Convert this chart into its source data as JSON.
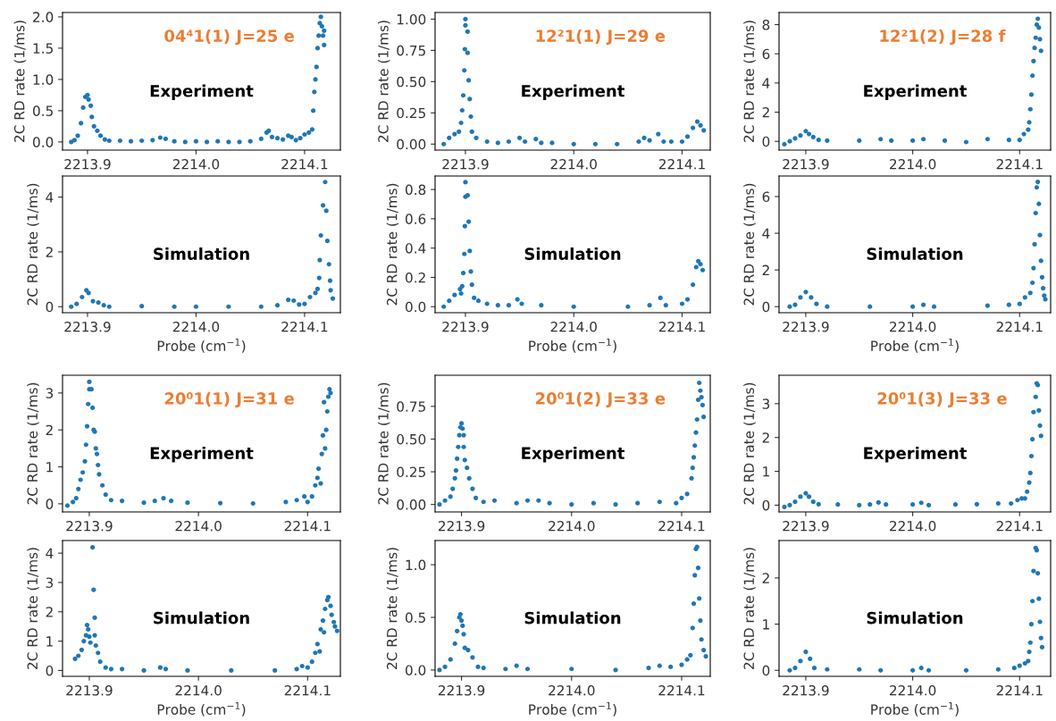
{
  "chart_data": [
    {
      "type": "scatter",
      "color": "#1f77b4",
      "marker": "circle",
      "ylabel": "2C RD rate (1/ms)",
      "annotations": [
        "04⁴1(1) J=25 e",
        "Experiment"
      ],
      "xlim": [
        2213.877,
        2214.133
      ],
      "ylim": [
        -0.13,
        2.07
      ],
      "xticks": [
        {
          "value": 2213.9,
          "label": "2213.9"
        },
        {
          "value": 2214,
          "label": "2214.0"
        },
        {
          "value": 2214.1,
          "label": "2214.1"
        }
      ],
      "yticks": [
        {
          "value": 0,
          "label": "0.0"
        },
        0.5,
        {
          "value": 1,
          "label": "1.0"
        },
        1.5,
        {
          "value": 2,
          "label": "2.0"
        }
      ],
      "x": [
        2213.885,
        2213.888,
        2213.891,
        2213.894,
        2213.896,
        2213.898,
        2213.9,
        2213.901,
        2213.903,
        2213.904,
        2213.906,
        2213.909,
        2213.912,
        2213.916,
        2213.92,
        2213.93,
        2213.94,
        2213.95,
        2213.96,
        2213.967,
        2213.972,
        2213.98,
        2213.99,
        2214.0,
        2214.01,
        2214.02,
        2214.03,
        2214.04,
        2214.05,
        2214.06,
        2214.065,
        2214.067,
        2214.07,
        2214.075,
        2214.08,
        2214.085,
        2214.088,
        2214.092,
        2214.096,
        2214.1,
        2214.104,
        2214.107,
        2214.108,
        2214.109,
        2214.11,
        2214.111,
        2214.112,
        2214.113,
        2214.114,
        2214.115,
        2214.116,
        2214.117,
        2214.118,
        2214.118
      ],
      "values": [
        0.0,
        0.03,
        0.1,
        0.3,
        0.55,
        0.72,
        0.75,
        0.68,
        0.58,
        0.4,
        0.25,
        0.18,
        0.1,
        0.04,
        0.02,
        0.02,
        0.01,
        0.02,
        0.03,
        0.07,
        0.05,
        0.01,
        0.0,
        0.01,
        0.0,
        0.01,
        0.0,
        0.0,
        0.01,
        0.05,
        0.15,
        0.18,
        0.08,
        0.06,
        0.04,
        0.1,
        0.08,
        0.03,
        0.06,
        0.12,
        0.15,
        0.2,
        0.5,
        0.8,
        1.0,
        1.2,
        1.5,
        1.7,
        1.9,
        2.0,
        1.85,
        1.7,
        1.55,
        1.78
      ]
    },
    {
      "type": "scatter",
      "color": "#1f77b4",
      "marker": "circle",
      "ylabel": "2C RD rate (1/ms)",
      "annotations": [
        "12²1(1) J=29 e",
        "Experiment"
      ],
      "xlim": [
        2213.872,
        2214.126
      ],
      "ylim": [
        -0.048,
        1.053
      ],
      "xticks": [
        {
          "value": 2213.9,
          "label": "2213.9"
        },
        {
          "value": 2214,
          "label": "2214.0"
        },
        {
          "value": 2214.1,
          "label": "2214.1"
        }
      ],
      "yticks": [
        {
          "value": 0,
          "label": "0.00"
        },
        {
          "value": 0.25,
          "label": "0.25"
        },
        {
          "value": 0.5,
          "label": "0.50"
        },
        {
          "value": 0.75,
          "label": "0.75"
        },
        {
          "value": 1,
          "label": "1.00"
        }
      ],
      "x": [
        2213.88,
        2213.885,
        2213.89,
        2213.894,
        2213.896,
        2213.897,
        2213.898,
        2213.899,
        2213.8995,
        2213.9,
        2213.9,
        2213.902,
        2213.902,
        2213.903,
        2213.904,
        2213.905,
        2213.906,
        2213.91,
        2213.92,
        2213.93,
        2213.94,
        2213.95,
        2213.955,
        2213.965,
        2213.97,
        2213.98,
        2214.0,
        2214.02,
        2214.04,
        2214.06,
        2214.065,
        2214.07,
        2214.078,
        2214.083,
        2214.09,
        2214.1,
        2214.105,
        2214.11,
        2214.114,
        2214.117,
        2214.12
      ],
      "values": [
        0.0,
        0.05,
        0.08,
        0.1,
        0.17,
        0.27,
        0.39,
        0.59,
        0.76,
        0.95,
        1.0,
        0.9,
        0.73,
        0.51,
        0.36,
        0.22,
        0.1,
        0.05,
        0.02,
        0.01,
        0.02,
        0.05,
        0.02,
        0.04,
        0.01,
        0.01,
        0.0,
        0.0,
        0.0,
        0.02,
        0.05,
        0.03,
        0.08,
        0.02,
        0.02,
        0.02,
        0.06,
        0.13,
        0.18,
        0.15,
        0.11
      ]
    },
    {
      "type": "scatter",
      "color": "#1f77b4",
      "marker": "circle",
      "ylabel": "2C RD rate (1/ms)",
      "annotations": [
        "12²1(2) J=28 f",
        "Experiment"
      ],
      "xlim": [
        2213.875,
        2214.129
      ],
      "ylim": [
        -0.6,
        8.83
      ],
      "xticks": [
        {
          "value": 2213.9,
          "label": "2213.9"
        },
        {
          "value": 2214,
          "label": "2214.0"
        },
        {
          "value": 2214.1,
          "label": "2214.1"
        }
      ],
      "yticks": [
        0,
        2,
        4,
        6,
        8
      ],
      "x": [
        2213.88,
        2213.885,
        2213.89,
        2213.895,
        2213.9,
        2213.903,
        2213.907,
        2213.912,
        2213.92,
        2213.95,
        2213.97,
        2213.98,
        2214.0,
        2214.01,
        2214.03,
        2214.05,
        2214.07,
        2214.09,
        2214.1,
        2214.104,
        2214.108,
        2214.109,
        2214.11,
        2214.111,
        2214.112,
        2214.113,
        2214.114,
        2214.115,
        2214.116,
        2214.117,
        2214.118,
        2214.119,
        2214.12
      ],
      "values": [
        -0.2,
        0.0,
        0.2,
        0.4,
        0.7,
        0.5,
        0.3,
        0.1,
        0.05,
        0.05,
        0.15,
        0.05,
        0.05,
        0.15,
        0.05,
        -0.05,
        0.15,
        0.1,
        0.1,
        0.5,
        0.8,
        1.3,
        2.2,
        3.2,
        4.5,
        5.5,
        6.4,
        7.1,
        8.0,
        8.4,
        7.8,
        7.0,
        6.2
      ]
    },
    {
      "type": "scatter",
      "color": "#1f77b4",
      "marker": "circle",
      "ylabel": "2C RD rate (1/ms)",
      "xlabel": "Probe (cm$^{−1}$)",
      "annotations": [
        "Simulation"
      ],
      "xlim": [
        2213.877,
        2214.133
      ],
      "ylim": [
        -0.22,
        4.77
      ],
      "xticks": [
        {
          "value": 2213.9,
          "label": "2213.9"
        },
        {
          "value": 2214,
          "label": "2214.0"
        },
        {
          "value": 2214.1,
          "label": "2214.1"
        }
      ],
      "yticks": [
        0,
        2,
        4
      ],
      "x": [
        2213.885,
        2213.89,
        2213.895,
        2213.899,
        2213.901,
        2213.905,
        2213.91,
        2213.915,
        2213.92,
        2213.95,
        2213.98,
        2214.0,
        2214.03,
        2214.06,
        2214.075,
        2214.085,
        2214.09,
        2214.095,
        2214.1,
        2214.105,
        2214.11,
        2214.112,
        2214.1135,
        2214.114,
        2214.115,
        2214.117,
        2214.119,
        2214.12,
        2214.121,
        2214.1225,
        2214.1235,
        2214.124,
        2214.126
      ],
      "values": [
        0.0,
        0.1,
        0.35,
        0.6,
        0.5,
        0.2,
        0.15,
        0.05,
        0.0,
        0.02,
        0.0,
        0.0,
        0.0,
        0.0,
        0.05,
        0.25,
        0.22,
        0.08,
        0.1,
        0.35,
        0.5,
        0.65,
        1.05,
        1.7,
        2.6,
        3.7,
        4.55,
        3.5,
        2.4,
        1.55,
        0.95,
        0.6,
        0.3
      ]
    },
    {
      "type": "scatter",
      "color": "#1f77b4",
      "marker": "circle",
      "ylabel": "2C RD rate (1/ms)",
      "xlabel": "Probe (cm$^{−1}$)",
      "annotations": [
        "Simulation"
      ],
      "xlim": [
        2213.872,
        2214.126
      ],
      "ylim": [
        -0.041,
        0.892
      ],
      "xticks": [
        {
          "value": 2213.9,
          "label": "2213.9"
        },
        {
          "value": 2214,
          "label": "2214.0"
        },
        {
          "value": 2214.1,
          "label": "2214.1"
        }
      ],
      "yticks": [
        {
          "value": 0,
          "label": "0.0"
        },
        0.2,
        0.4,
        0.6,
        0.8
      ],
      "x": [
        2213.88,
        2213.885,
        2213.89,
        2213.895,
        2213.897,
        2213.896,
        2213.898,
        2213.899,
        2213.8995,
        2213.9,
        2213.9,
        2213.902,
        2213.903,
        2213.904,
        2213.905,
        2213.906,
        2213.908,
        2213.912,
        2213.92,
        2213.93,
        2213.94,
        2213.948,
        2213.952,
        2213.97,
        2214.0,
        2214.05,
        2214.07,
        2214.08,
        2214.085,
        2214.1,
        2214.105,
        2214.11,
        2214.113,
        2214.115,
        2214.117,
        2214.119
      ],
      "values": [
        0.0,
        0.04,
        0.08,
        0.12,
        0.14,
        0.09,
        0.23,
        0.36,
        0.55,
        0.75,
        0.85,
        0.76,
        0.58,
        0.38,
        0.24,
        0.15,
        0.06,
        0.04,
        0.02,
        0.01,
        0.01,
        0.05,
        0.02,
        0.01,
        0.0,
        0.0,
        0.01,
        0.06,
        0.01,
        0.02,
        0.05,
        0.15,
        0.27,
        0.31,
        0.29,
        0.25
      ]
    },
    {
      "type": "scatter",
      "color": "#1f77b4",
      "marker": "circle",
      "ylabel": "2C RD rate (1/ms)",
      "xlabel": "Probe (cm$^{−1}$)",
      "annotations": [
        "Simulation"
      ],
      "xlim": [
        2213.875,
        2214.129
      ],
      "ylim": [
        -0.33,
        7.12
      ],
      "xticks": [
        {
          "value": 2213.9,
          "label": "2213.9"
        },
        {
          "value": 2214,
          "label": "2214.0"
        },
        {
          "value": 2214.1,
          "label": "2214.1"
        }
      ],
      "yticks": [
        0,
        2,
        4,
        6
      ],
      "x": [
        2213.885,
        2213.89,
        2213.895,
        2213.9,
        2213.905,
        2213.91,
        2213.92,
        2213.96,
        2214.0,
        2214.01,
        2214.02,
        2214.07,
        2214.09,
        2214.1,
        2214.105,
        2214.11,
        2214.112,
        2214.113,
        2214.114,
        2214.115,
        2214.116,
        2214.117,
        2214.118,
        2214.119,
        2214.12,
        2214.121,
        2214.122,
        2214.123,
        2214.124
      ],
      "values": [
        0.0,
        0.1,
        0.5,
        0.8,
        0.5,
        0.15,
        0.0,
        0.0,
        0.0,
        0.1,
        0.0,
        0.05,
        0.1,
        0.15,
        0.5,
        0.75,
        1.3,
        2.1,
        3.4,
        5.1,
        6.5,
        6.8,
        5.6,
        3.9,
        2.5,
        1.6,
        1.0,
        0.6,
        0.4
      ]
    },
    {
      "type": "scatter",
      "color": "#1f77b4",
      "marker": "circle",
      "ylabel": "2C RD rate (1/ms)",
      "annotations": [
        "20⁰1(1) J=31 e",
        "Experiment"
      ],
      "xlim": [
        2213.8755,
        2214.13
      ],
      "ylim": [
        -0.22,
        3.48
      ],
      "xticks": [
        {
          "value": 2213.9,
          "label": "2213.9"
        },
        {
          "value": 2214,
          "label": "2214.0"
        },
        {
          "value": 2214.1,
          "label": "2214.1"
        }
      ],
      "yticks": [
        0,
        1,
        2,
        3
      ],
      "x": [
        2213.88,
        2213.885,
        2213.888,
        2213.89,
        2213.892,
        2213.894,
        2213.896,
        2213.897,
        2213.898,
        2213.899,
        2213.9,
        2213.9,
        2213.902,
        2213.903,
        2213.904,
        2213.905,
        2213.906,
        2213.907,
        2213.908,
        2213.909,
        2213.912,
        2213.915,
        2213.92,
        2213.93,
        2213.95,
        2213.96,
        2213.968,
        2213.975,
        2213.99,
        2214.02,
        2214.05,
        2214.08,
        2214.09,
        2214.097,
        2214.1,
        2214.104,
        2214.107,
        2214.109,
        2214.11,
        2214.112,
        2214.113,
        2214.114,
        2214.115,
        2214.116,
        2214.117,
        2214.118,
        2214.119,
        2214.12,
        2214.121
      ],
      "values": [
        -0.05,
        0.05,
        0.15,
        0.4,
        0.65,
        0.85,
        1.15,
        1.6,
        2.1,
        2.7,
        3.1,
        3.3,
        3.1,
        2.6,
        2.0,
        1.95,
        1.5,
        1.35,
        1.05,
        0.8,
        0.5,
        0.25,
        0.1,
        0.08,
        0.03,
        0.08,
        0.15,
        0.08,
        0.03,
        0.02,
        0.01,
        0.05,
        0.1,
        0.2,
        0.05,
        0.2,
        0.5,
        0.7,
        0.95,
        0.55,
        1.35,
        1.85,
        2.75,
        1.5,
        2.0,
        2.5,
        2.9,
        3.1,
        3.0
      ]
    },
    {
      "type": "scatter",
      "color": "#1f77b4",
      "marker": "circle",
      "ylabel": "2C RD rate (1/ms)",
      "annotations": [
        "20⁰1(2) J=33 e",
        "Experiment"
      ],
      "xlim": [
        2213.876,
        2214.126
      ],
      "ylim": [
        -0.057,
        0.988
      ],
      "xticks": [
        {
          "value": 2213.9,
          "label": "2213.9"
        },
        {
          "value": 2214,
          "label": "2214.0"
        },
        {
          "value": 2214.1,
          "label": "2214.1"
        }
      ],
      "yticks": [
        {
          "value": 0,
          "label": "0.00"
        },
        {
          "value": 0.25,
          "label": "0.25"
        },
        {
          "value": 0.5,
          "label": "0.50"
        },
        {
          "value": 0.75,
          "label": "0.75"
        }
      ],
      "x": [
        2213.88,
        2213.885,
        2213.89,
        2213.892,
        2213.894,
        2213.895,
        2213.896,
        2213.897,
        2213.898,
        2213.899,
        2213.9,
        2213.901,
        2213.902,
        2213.902,
        2213.903,
        2213.905,
        2213.907,
        2213.91,
        2213.913,
        2213.92,
        2213.93,
        2213.95,
        2213.96,
        2213.97,
        2213.98,
        2214.0,
        2214.02,
        2214.04,
        2214.06,
        2214.08,
        2214.095,
        2214.1,
        2214.105,
        2214.109,
        2214.11,
        2214.111,
        2214.112,
        2214.113,
        2214.114,
        2214.115,
        2214.116,
        2214.117,
        2214.118,
        2214.119,
        2214.12
      ],
      "values": [
        0.0,
        0.03,
        0.06,
        0.12,
        0.2,
        0.26,
        0.35,
        0.44,
        0.53,
        0.59,
        0.62,
        0.58,
        0.53,
        0.44,
        0.34,
        0.28,
        0.2,
        0.12,
        0.05,
        0.02,
        0.03,
        0.01,
        0.03,
        0.03,
        0.01,
        0.0,
        0.01,
        0.0,
        0.01,
        0.02,
        0.01,
        0.05,
        0.08,
        0.2,
        0.28,
        0.36,
        0.45,
        0.55,
        0.65,
        0.8,
        0.93,
        0.87,
        0.82,
        0.76,
        0.67
      ]
    },
    {
      "type": "scatter",
      "color": "#1f77b4",
      "marker": "circle",
      "ylabel": "2C RD rate (1/ms)",
      "annotations": [
        "20⁰1(3) J=33 e",
        "Experiment"
      ],
      "xlim": [
        2213.875,
        2214.129
      ],
      "ylim": [
        -0.2,
        3.84
      ],
      "xticks": [
        {
          "value": 2213.9,
          "label": "2213.9"
        },
        {
          "value": 2214,
          "label": "2214.0"
        },
        {
          "value": 2214.1,
          "label": "2214.1"
        }
      ],
      "yticks": [
        0,
        1,
        2,
        3
      ],
      "x": [
        2213.88,
        2213.885,
        2213.89,
        2213.895,
        2213.9,
        2213.903,
        2213.907,
        2213.912,
        2213.93,
        2213.95,
        2213.96,
        2213.968,
        2213.975,
        2214.0,
        2214.008,
        2214.015,
        2214.04,
        2214.06,
        2214.08,
        2214.092,
        2214.098,
        2214.102,
        2214.105,
        2214.107,
        2214.109,
        2214.11,
        2214.111,
        2214.112,
        2214.113,
        2214.115,
        2214.116,
        2214.117,
        2214.118,
        2214.119,
        2214.12
      ],
      "values": [
        -0.05,
        0.0,
        0.1,
        0.25,
        0.35,
        0.25,
        0.1,
        0.03,
        0.02,
        0.0,
        0.02,
        0.08,
        0.02,
        0.02,
        0.07,
        0.0,
        0.02,
        0.03,
        0.05,
        0.05,
        0.15,
        0.2,
        0.2,
        0.4,
        0.67,
        0.95,
        1.45,
        1.95,
        2.75,
        3.2,
        3.6,
        3.55,
        2.8,
        2.35,
        2.05
      ]
    },
    {
      "type": "scatter",
      "color": "#1f77b4",
      "marker": "circle",
      "ylabel": "2C RD rate (1/ms)",
      "xlabel": "Probe (cm$^{−1}$)",
      "annotations": [
        "Simulation"
      ],
      "xlim": [
        2213.8755,
        2214.13
      ],
      "ylim": [
        -0.2,
        4.43
      ],
      "xticks": [
        {
          "value": 2213.9,
          "label": "2213.9"
        },
        {
          "value": 2214,
          "label": "2214.0"
        },
        {
          "value": 2214.1,
          "label": "2214.1"
        }
      ],
      "yticks": [
        0,
        1,
        2,
        3,
        4
      ],
      "x": [
        2213.887,
        2213.89,
        2213.893,
        2213.895,
        2213.897,
        2213.898,
        2213.899,
        2213.9,
        2213.901,
        2213.903,
        2213.904,
        2213.905,
        2213.905,
        2213.906,
        2213.908,
        2213.91,
        2213.915,
        2213.92,
        2213.93,
        2213.95,
        2213.965,
        2213.97,
        2213.99,
        2214.03,
        2214.07,
        2214.09,
        2214.095,
        2214.1,
        2214.104,
        2214.107,
        2214.109,
        2214.111,
        2214.112,
        2214.114,
        2214.115,
        2214.116,
        2214.118,
        2214.119,
        2214.121,
        2214.122,
        2214.124,
        2214.125,
        2214.127
      ],
      "values": [
        0.4,
        0.5,
        0.7,
        1.0,
        1.2,
        1.55,
        1.4,
        1.15,
        0.95,
        4.2,
        2.75,
        1.8,
        1.2,
        0.85,
        0.6,
        0.3,
        0.1,
        0.05,
        0.05,
        0.0,
        0.1,
        0.05,
        0.0,
        0.0,
        0.0,
        0.05,
        0.15,
        0.1,
        0.3,
        0.6,
        0.9,
        0.65,
        1.4,
        1.7,
        1.3,
        2.1,
        2.4,
        2.5,
        2.2,
        1.9,
        1.65,
        1.5,
        1.35
      ]
    },
    {
      "type": "scatter",
      "color": "#1f77b4",
      "marker": "circle",
      "ylabel": "2C RD rate (1/ms)",
      "xlabel": "Probe (cm$^{−1}$)",
      "annotations": [
        "Simulation"
      ],
      "xlim": [
        2213.876,
        2214.126
      ],
      "ylim": [
        -0.06,
        1.23
      ],
      "xticks": [
        {
          "value": 2213.9,
          "label": "2213.9"
        },
        {
          "value": 2214,
          "label": "2214.0"
        },
        {
          "value": 2214.1,
          "label": "2214.1"
        }
      ],
      "yticks": [
        {
          "value": 0,
          "label": "0.0"
        },
        0.5,
        {
          "value": 1,
          "label": "1.0"
        }
      ],
      "x": [
        2213.88,
        2213.885,
        2213.89,
        2213.894,
        2213.896,
        2213.898,
        2213.899,
        2213.9,
        2213.901,
        2213.902,
        2213.903,
        2213.906,
        2213.91,
        2213.915,
        2213.92,
        2213.94,
        2213.95,
        2213.96,
        2214.0,
        2214.04,
        2214.07,
        2214.08,
        2214.09,
        2214.1,
        2214.105,
        2214.108,
        2214.11,
        2214.111,
        2214.112,
        2214.113,
        2214.114,
        2214.115,
        2214.116,
        2214.117,
        2214.118,
        2214.12,
        2214.122
      ],
      "values": [
        0.0,
        0.03,
        0.1,
        0.25,
        0.37,
        0.5,
        0.53,
        0.47,
        0.42,
        0.34,
        0.21,
        0.19,
        0.12,
        0.03,
        0.02,
        0.01,
        0.04,
        0.01,
        0.01,
        0.0,
        0.02,
        0.04,
        0.03,
        0.05,
        0.1,
        0.14,
        0.4,
        0.63,
        0.9,
        1.15,
        1.17,
        0.97,
        0.68,
        0.47,
        0.29,
        0.19,
        0.13
      ]
    },
    {
      "type": "scatter",
      "color": "#1f77b4",
      "marker": "circle",
      "ylabel": "2C RD rate (1/ms)",
      "xlabel": "Probe (cm$^{−1}$)",
      "annotations": [
        "Simulation"
      ],
      "xlim": [
        2213.875,
        2214.129
      ],
      "ylim": [
        -0.13,
        2.81
      ],
      "xticks": [
        {
          "value": 2213.9,
          "label": "2213.9"
        },
        {
          "value": 2214,
          "label": "2214.0"
        },
        {
          "value": 2214.1,
          "label": "2214.1"
        }
      ],
      "yticks": [
        0,
        1,
        2
      ],
      "x": [
        2213.885,
        2213.89,
        2213.895,
        2213.9,
        2213.904,
        2213.908,
        2213.92,
        2213.95,
        2213.97,
        2214.0,
        2214.008,
        2214.015,
        2214.05,
        2214.08,
        2214.095,
        2214.1,
        2214.105,
        2214.108,
        2214.109,
        2214.11,
        2214.111,
        2214.112,
        2214.113,
        2214.115,
        2214.116,
        2214.117,
        2214.118,
        2214.119,
        2214.12,
        2214.121
      ],
      "values": [
        0.0,
        0.05,
        0.2,
        0.4,
        0.25,
        0.05,
        0.02,
        0.02,
        0.0,
        0.0,
        0.05,
        0.0,
        0.0,
        0.02,
        0.05,
        0.1,
        0.15,
        0.2,
        0.4,
        0.6,
        1.0,
        1.5,
        2.15,
        2.65,
        2.6,
        2.1,
        1.55,
        1.05,
        0.7,
        0.5
      ]
    }
  ]
}
